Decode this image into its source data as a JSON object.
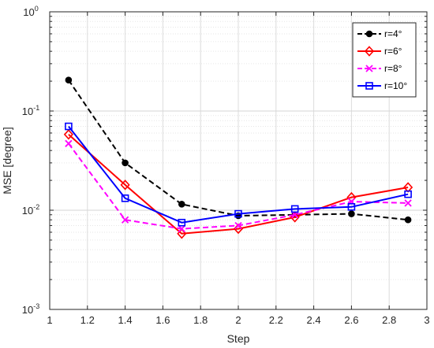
{
  "chart_data": {
    "type": "line",
    "xlabel": "Step",
    "ylabel": "MSE [degree]",
    "xlim": [
      1,
      3
    ],
    "ylim": [
      0.001,
      1
    ],
    "yscale": "log",
    "grid": true,
    "legend_position": "top-right",
    "x": [
      1.1,
      1.4,
      1.7,
      2.0,
      2.3,
      2.6,
      2.9
    ],
    "x_ticks": [
      "1",
      "1.2",
      "1.4",
      "1.6",
      "1.8",
      "2",
      "2.2",
      "2.4",
      "2.6",
      "2.8",
      "3"
    ],
    "y_ticks": [
      {
        "base": "10",
        "exp": "0"
      },
      {
        "base": "10",
        "exp": "-1"
      },
      {
        "base": "10",
        "exp": "-2"
      },
      {
        "base": "10",
        "exp": "-3"
      }
    ],
    "series": [
      {
        "name": "r=4°",
        "color": "#000000",
        "dash": "dashed",
        "marker": "circle",
        "values": [
          0.205,
          0.03,
          0.0115,
          0.0088,
          0.009,
          0.0092,
          0.008
        ]
      },
      {
        "name": "r=6°",
        "color": "#ff0000",
        "dash": "solid",
        "marker": "diamond",
        "values": [
          0.058,
          0.018,
          0.0058,
          0.0065,
          0.0085,
          0.0135,
          0.017
        ]
      },
      {
        "name": "r=8°",
        "color": "#ff00ff",
        "dash": "dashed",
        "marker": "x",
        "values": [
          0.047,
          0.008,
          0.0065,
          0.007,
          0.009,
          0.0122,
          0.0118
        ]
      },
      {
        "name": "r=10°",
        "color": "#0000ff",
        "dash": "solid",
        "marker": "square",
        "values": [
          0.07,
          0.0132,
          0.0075,
          0.0092,
          0.0103,
          0.0108,
          0.0145
        ]
      }
    ]
  }
}
